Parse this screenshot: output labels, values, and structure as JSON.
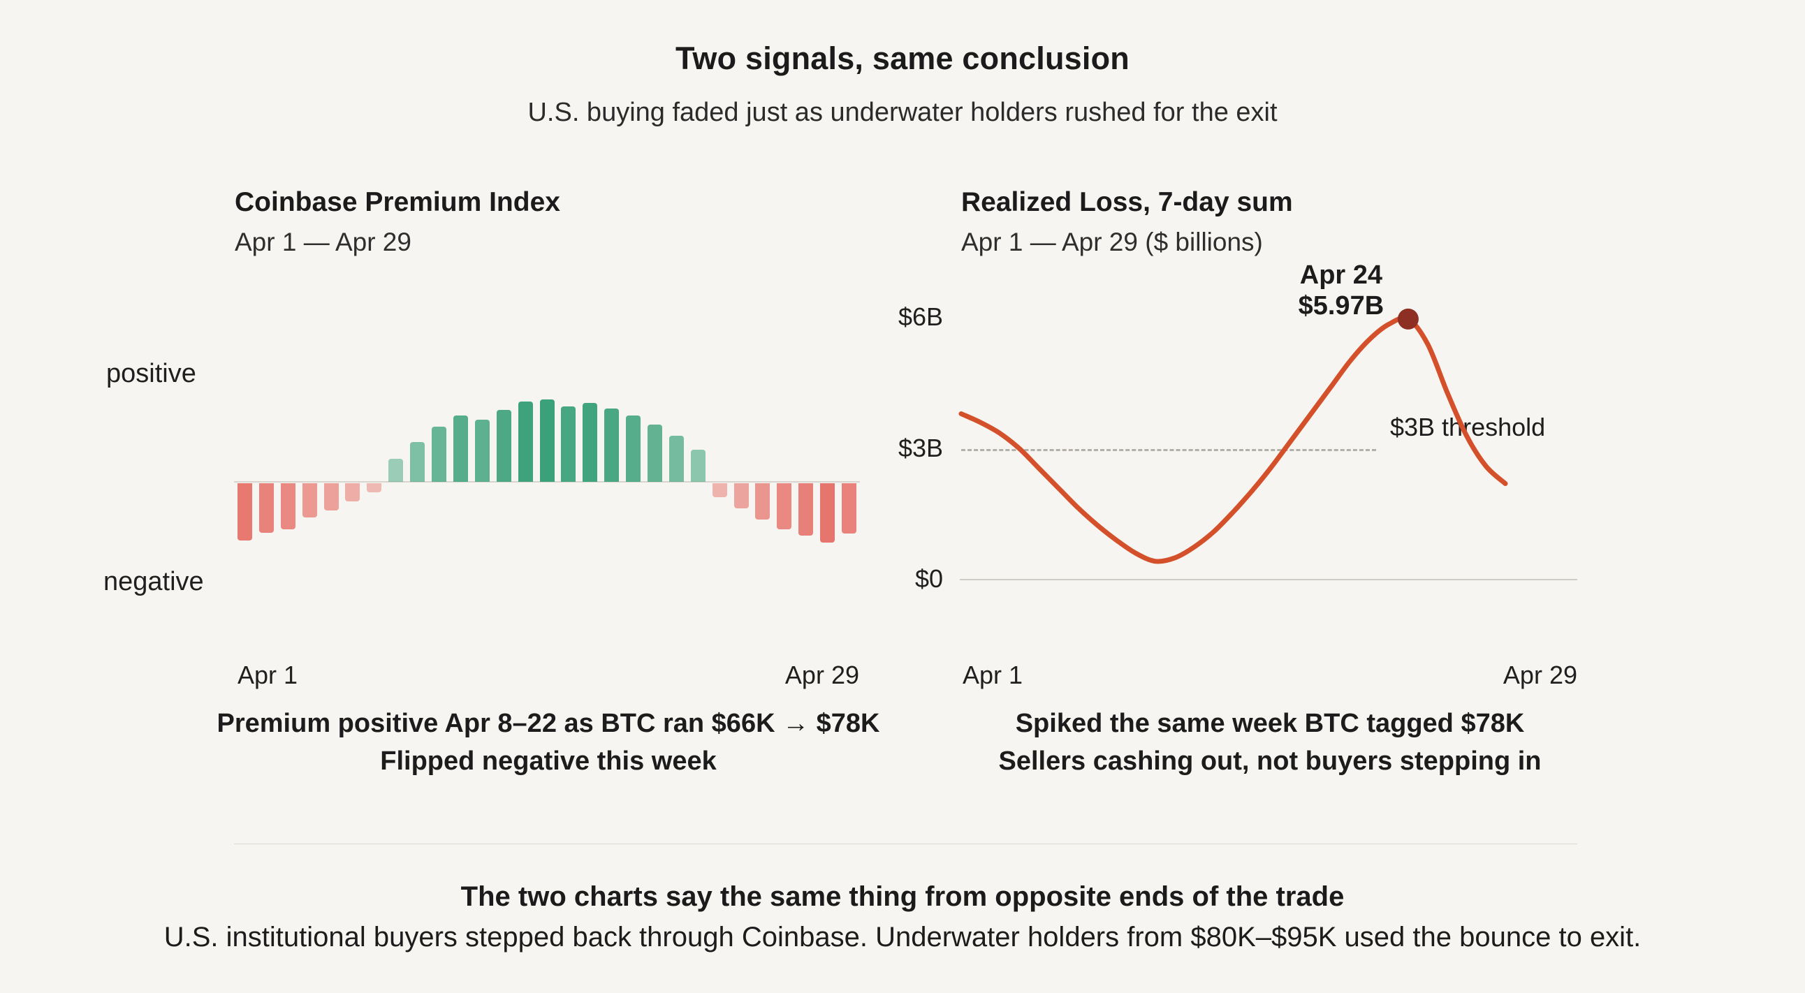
{
  "header": {
    "title": "Two signals, same conclusion",
    "subtitle": "U.S. buying faded just as underwater holders rushed for the exit"
  },
  "footer": {
    "line1": "The two charts say the same thing from opposite ends of the trade",
    "line2": "U.S. institutional buyers stepped back through Coinbase. Underwater holders from $80K–$95K used the bounce to exit."
  },
  "colors": {
    "background": "#f7f5f1",
    "text": "#1b1b1b"
  },
  "chart_data": [
    {
      "type": "bar",
      "title": "Coinbase Premium Index",
      "subtitle": "Apr 1 — Apr 29",
      "ylabels": {
        "positive": "positive",
        "negative": "negative"
      },
      "x_start_label": "Apr 1",
      "x_end_label": "Apr 29",
      "categories": [
        "Apr 1",
        "Apr 2",
        "Apr 3",
        "Apr 4",
        "Apr 5",
        "Apr 6",
        "Apr 7",
        "Apr 8",
        "Apr 9",
        "Apr 10",
        "Apr 11",
        "Apr 12",
        "Apr 13",
        "Apr 14",
        "Apr 15",
        "Apr 16",
        "Apr 17",
        "Apr 18",
        "Apr 19",
        "Apr 20",
        "Apr 21",
        "Apr 22",
        "Apr 23",
        "Apr 24",
        "Apr 25",
        "Apr 26",
        "Apr 27",
        "Apr 28",
        "Apr 29"
      ],
      "values": [
        -0.5,
        -0.43,
        -0.4,
        -0.3,
        -0.24,
        -0.16,
        -0.08,
        0.2,
        0.35,
        0.48,
        0.58,
        0.54,
        0.63,
        0.7,
        0.72,
        0.66,
        0.69,
        0.64,
        0.58,
        0.5,
        0.4,
        0.28,
        -0.12,
        -0.22,
        -0.32,
        -0.4,
        -0.46,
        -0.52,
        -0.44
      ],
      "ylim": [
        -0.8,
        0.8
      ],
      "grid": false,
      "colors": {
        "positive": "#3aa17a",
        "negative": "#e2584f"
      },
      "caption": [
        "Premium positive Apr 8–22 as BTC ran $66K → $78K",
        "Flipped negative this week"
      ]
    },
    {
      "type": "line",
      "title": "Realized Loss, 7-day sum",
      "subtitle": "Apr 1 — Apr 29 ($ billions)",
      "x_start_label": "Apr 1",
      "x_end_label": "Apr 29",
      "x": [
        1,
        2,
        3,
        4,
        5,
        6,
        7,
        8,
        9,
        10,
        11,
        12,
        13,
        14,
        15,
        16,
        17,
        18,
        19,
        20,
        21,
        22,
        23,
        24,
        25,
        26,
        27,
        28,
        29
      ],
      "values": [
        3.8,
        3.6,
        3.35,
        3.0,
        2.55,
        2.1,
        1.65,
        1.25,
        0.9,
        0.6,
        0.42,
        0.5,
        0.75,
        1.1,
        1.55,
        2.05,
        2.6,
        3.2,
        3.8,
        4.4,
        5.0,
        5.5,
        5.85,
        5.97,
        5.4,
        4.3,
        3.3,
        2.6,
        2.2
      ],
      "ylim": [
        0,
        6
      ],
      "grid": false,
      "yticks": [
        {
          "value": 6,
          "label": "$6B"
        },
        {
          "value": 3,
          "label": "$3B"
        },
        {
          "value": 0,
          "label": "$0"
        }
      ],
      "threshold": {
        "value": 3,
        "label": "$3B threshold"
      },
      "annotation": {
        "line1": "Apr 24",
        "line2": "$5.97B",
        "x": 24,
        "value": 5.97
      },
      "colors": {
        "line": "#d4502b",
        "dot": "#8d2f23",
        "threshold": "#b3b0aa"
      },
      "caption": [
        "Spiked the same week BTC tagged $78K",
        "Sellers cashing out, not buyers stepping in"
      ]
    }
  ]
}
